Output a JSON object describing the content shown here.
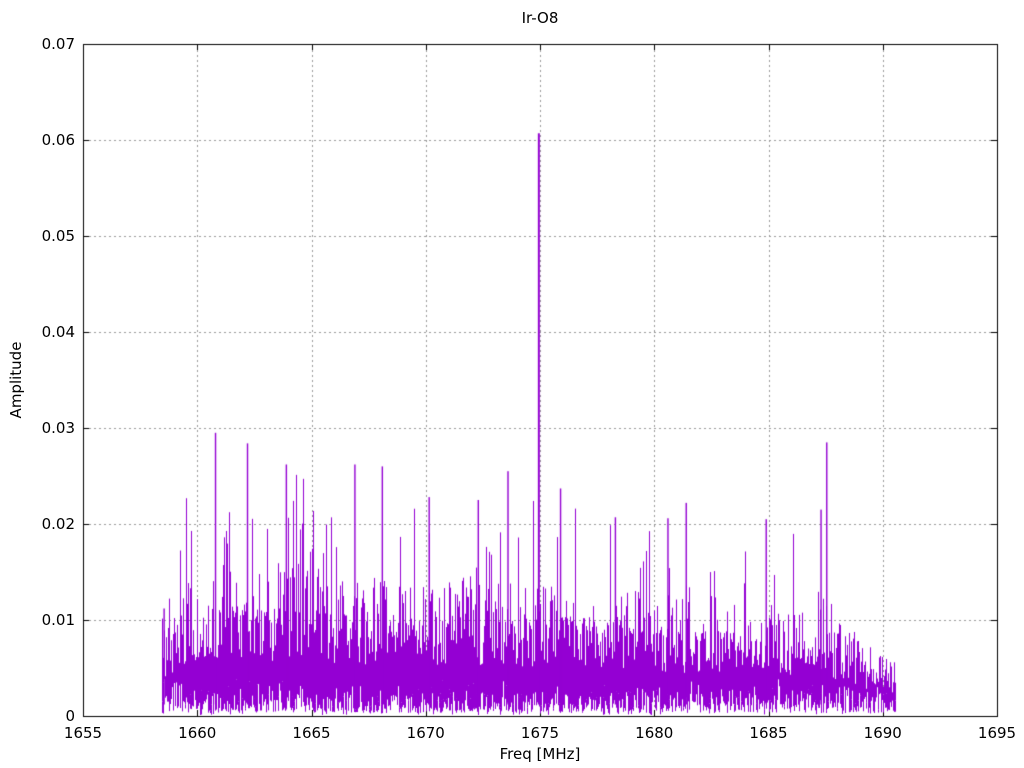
{
  "page": {
    "background": "#ffffff"
  },
  "chart_data": {
    "type": "line",
    "subtype": "noisy-spectrum-impulses",
    "title": "Ir-O8",
    "xlabel": "Freq [MHz]",
    "ylabel": "Amplitude",
    "xlim": [
      1655,
      1695
    ],
    "ylim": [
      0,
      0.07
    ],
    "xticks": [
      1655,
      1660,
      1665,
      1670,
      1675,
      1680,
      1685,
      1690,
      1695
    ],
    "xtick_labels": [
      "1655",
      "1660",
      "1665",
      "1670",
      "1675",
      "1680",
      "1685",
      "1690",
      "1695"
    ],
    "yticks": [
      0,
      0.01,
      0.02,
      0.03,
      0.04,
      0.05,
      0.06,
      0.07
    ],
    "ytick_labels": [
      "0",
      "0.01",
      "0.02",
      "0.03",
      "0.04",
      "0.05",
      "0.06",
      "0.07"
    ],
    "grid": true,
    "grid_style": "dashed-gray",
    "legend": "none",
    "line_color": "#9400D3",
    "frame_color": "#000000",
    "grid_color": "#999999",
    "signal": {
      "freq_start": 1658.45,
      "freq_end": 1690.55,
      "noise_floor_low": 0.0003,
      "noise_floor_high": 0.004,
      "envelope_freq": [
        1658.5,
        1659,
        1660,
        1661,
        1662,
        1663,
        1664,
        1665,
        1666,
        1667,
        1668,
        1669,
        1670,
        1671,
        1672,
        1673,
        1674,
        1675,
        1676,
        1677,
        1678,
        1679,
        1680,
        1681,
        1682,
        1683,
        1684,
        1685,
        1686,
        1687,
        1687.5,
        1688,
        1689,
        1690,
        1690.5
      ],
      "band_top": [
        0.007,
        0.01,
        0.012,
        0.013,
        0.013,
        0.0125,
        0.013,
        0.0125,
        0.012,
        0.012,
        0.0115,
        0.012,
        0.0115,
        0.0115,
        0.012,
        0.0115,
        0.011,
        0.011,
        0.0115,
        0.011,
        0.011,
        0.0105,
        0.0105,
        0.01,
        0.01,
        0.01,
        0.0095,
        0.009,
        0.0085,
        0.009,
        0.0105,
        0.008,
        0.0065,
        0.005,
        0.0045
      ],
      "spike_max": [
        0.011,
        0.02,
        0.027,
        0.0295,
        0.028,
        0.024,
        0.026,
        0.024,
        0.0235,
        0.026,
        0.026,
        0.022,
        0.0228,
        0.021,
        0.0225,
        0.021,
        0.021,
        0.024,
        0.0237,
        0.021,
        0.02,
        0.019,
        0.0206,
        0.022,
        0.019,
        0.0185,
        0.018,
        0.0205,
        0.019,
        0.019,
        0.021,
        0.015,
        0.012,
        0.008,
        0.007
      ],
      "peaks": [
        {
          "freq": 1658.55,
          "amp": 0.0112
        },
        {
          "freq": 1660.8,
          "amp": 0.0295
        },
        {
          "freq": 1662.2,
          "amp": 0.0284
        },
        {
          "freq": 1663.9,
          "amp": 0.0262
        },
        {
          "freq": 1666.9,
          "amp": 0.0262
        },
        {
          "freq": 1668.1,
          "amp": 0.026
        },
        {
          "freq": 1670.15,
          "amp": 0.0228
        },
        {
          "freq": 1672.3,
          "amp": 0.0225
        },
        {
          "freq": 1673.6,
          "amp": 0.0255
        },
        {
          "freq": 1674.95,
          "amp": 0.0607
        },
        {
          "freq": 1675.9,
          "amp": 0.0237
        },
        {
          "freq": 1678.3,
          "amp": 0.0207
        },
        {
          "freq": 1680.6,
          "amp": 0.0206
        },
        {
          "freq": 1681.4,
          "amp": 0.0222
        },
        {
          "freq": 1684.9,
          "amp": 0.0205
        },
        {
          "freq": 1687.3,
          "amp": 0.0215
        },
        {
          "freq": 1687.55,
          "amp": 0.0285
        }
      ]
    }
  }
}
